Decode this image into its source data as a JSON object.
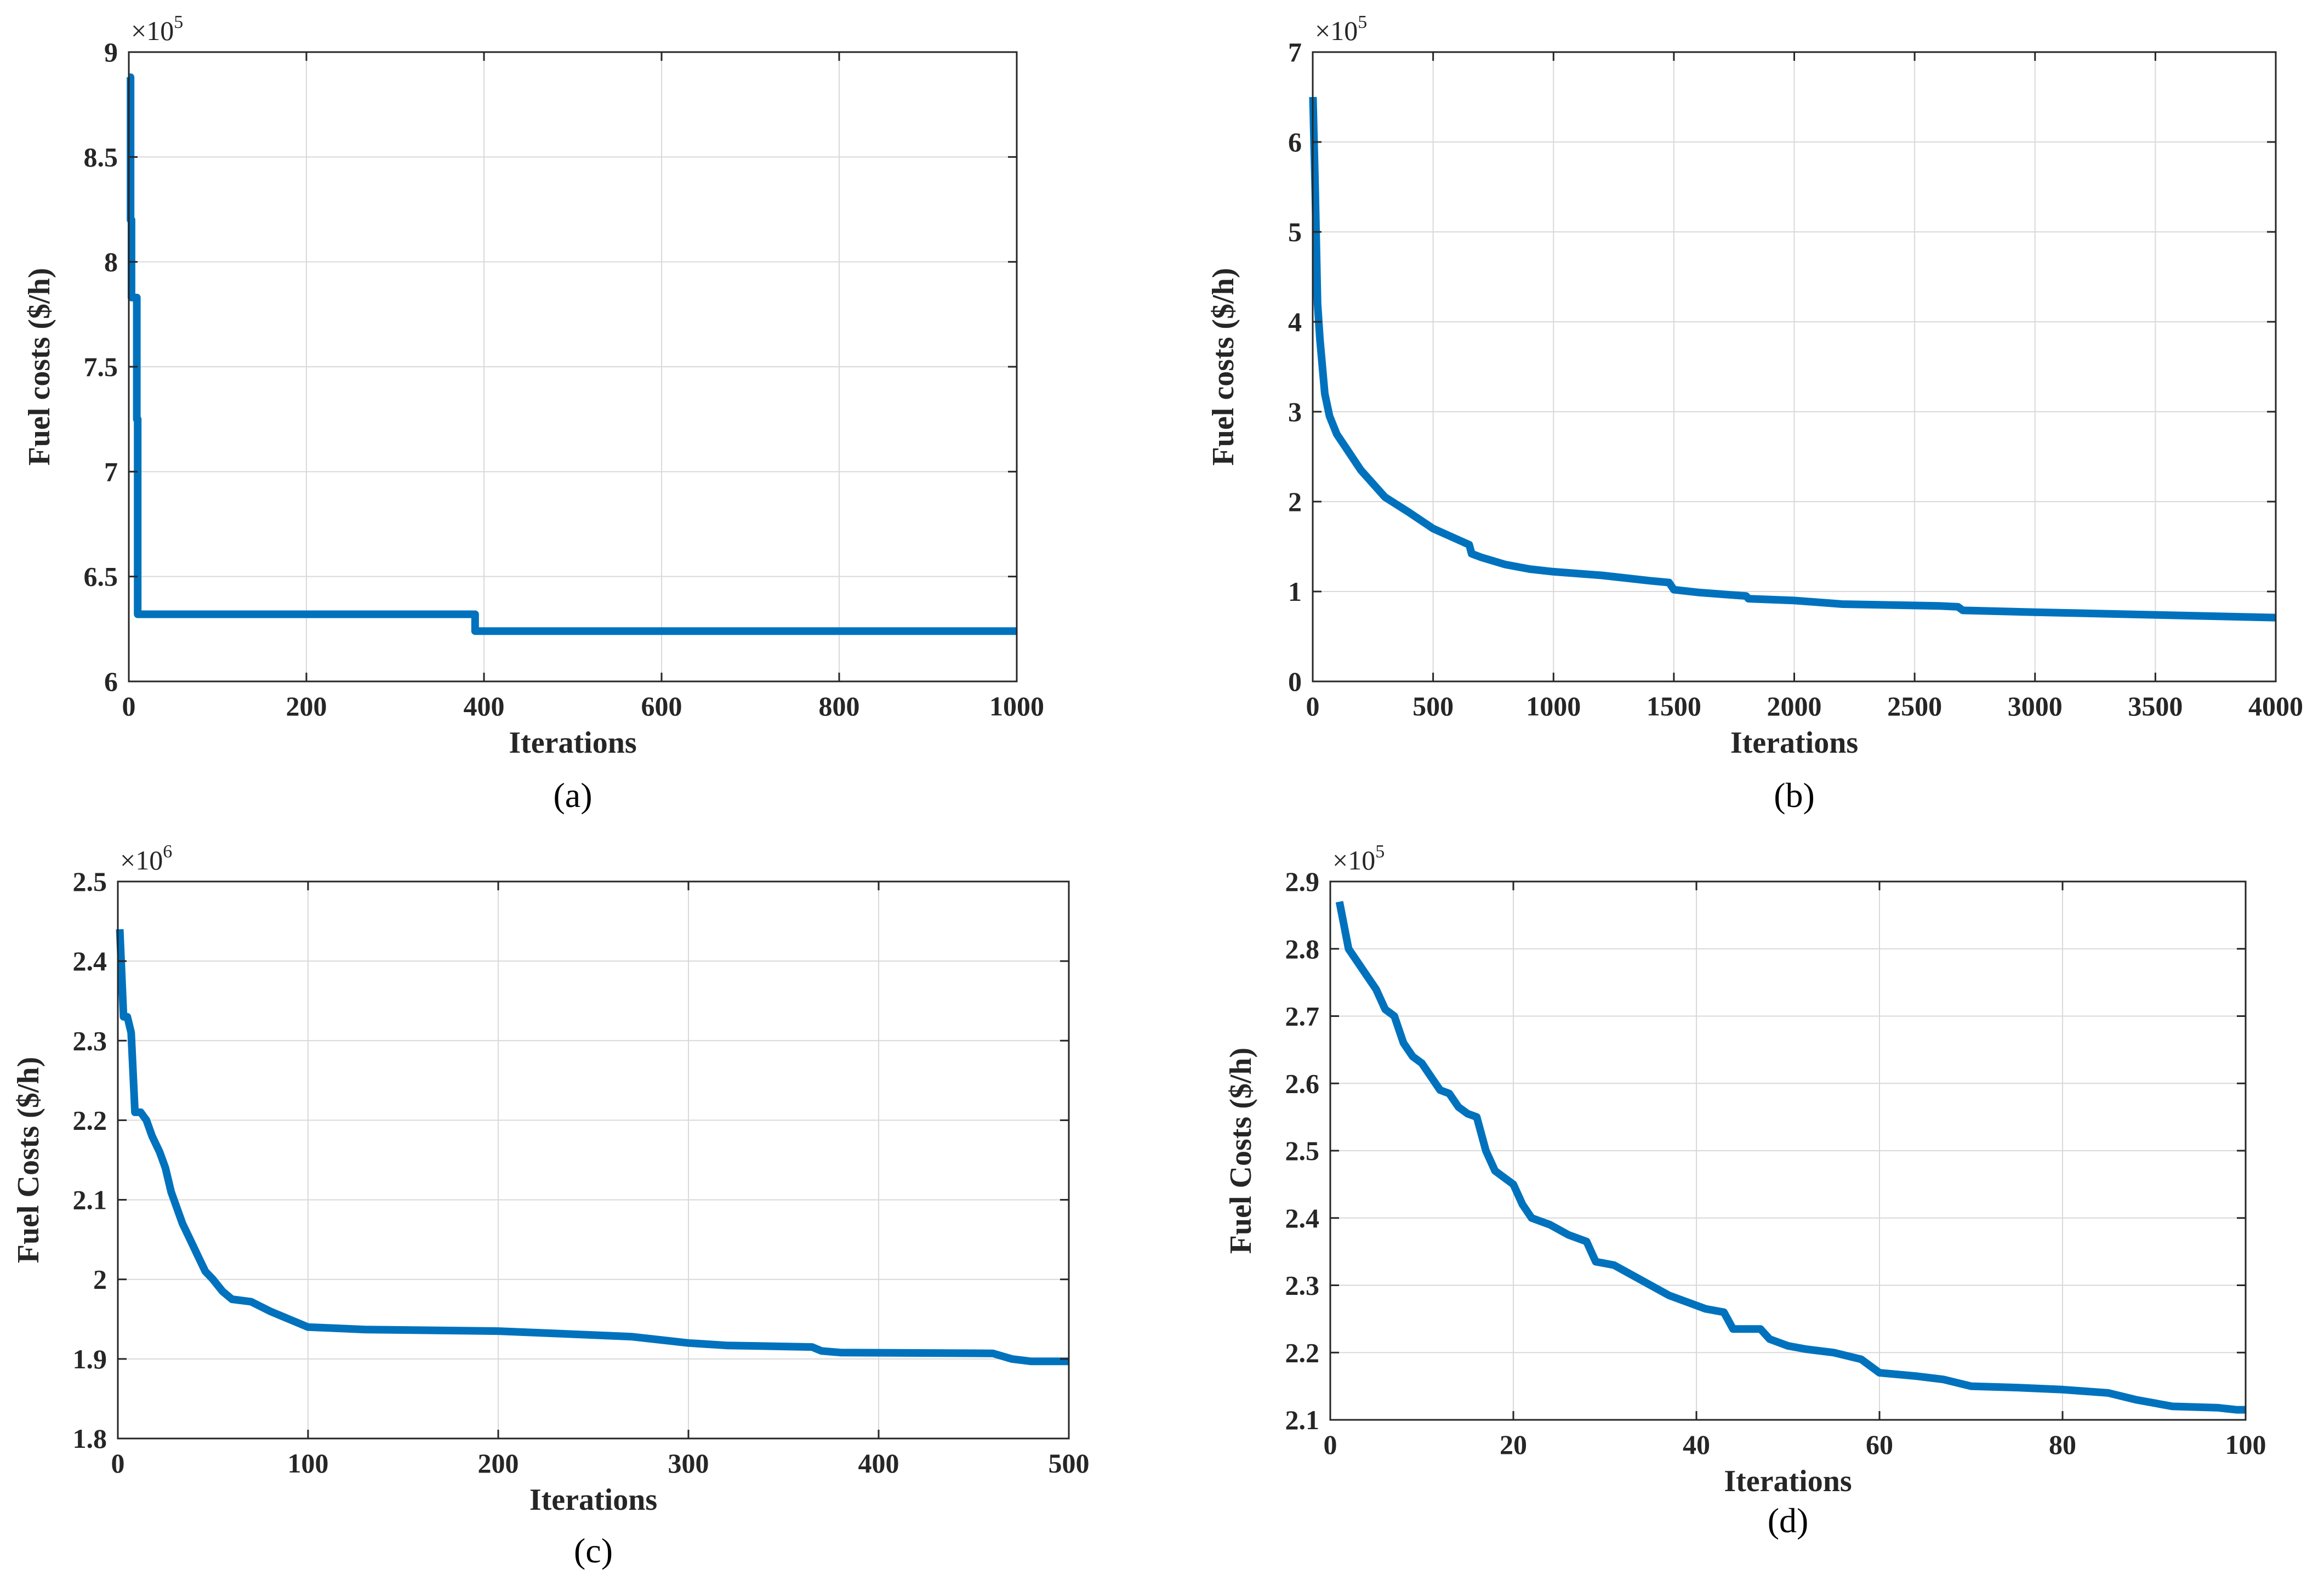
{
  "colors": {
    "series": "#0072BD",
    "axis": "#262626",
    "grid": "#d9d9d9"
  },
  "chart_data": [
    {
      "type": "line",
      "caption": "(a)",
      "xlabel": "Iterations",
      "ylabel": "Fuel costs ($/h)",
      "y_multiplier": {
        "base": "×10",
        "exponent": "5"
      },
      "xlim": [
        0,
        1000
      ],
      "ylim": [
        6,
        9
      ],
      "xticks": [
        0,
        200,
        400,
        600,
        800,
        1000
      ],
      "xtick_labels": [
        "0",
        "200",
        "400",
        "600",
        "800",
        "1000"
      ],
      "yticks": [
        6,
        6.5,
        7,
        7.5,
        8,
        8.5,
        9
      ],
      "ytick_labels": [
        "6",
        "6.5",
        "7",
        "7.5",
        "8",
        "8.5",
        "9"
      ],
      "grid": true,
      "series": [
        {
          "name": "Fuel costs",
          "points": [
            [
              1,
              8.88
            ],
            [
              2,
              8.88
            ],
            [
              2,
              8.2
            ],
            [
              3,
              8.2
            ],
            [
              3,
              7.83
            ],
            [
              9,
              7.83
            ],
            [
              9,
              7.25
            ],
            [
              10,
              7.25
            ],
            [
              10,
              6.32
            ],
            [
              390,
              6.32
            ],
            [
              390,
              6.24
            ],
            [
              1000,
              6.24
            ]
          ]
        }
      ]
    },
    {
      "type": "line",
      "caption": "(b)",
      "xlabel": "Iterations",
      "ylabel": "Fuel costs ($/h)",
      "y_multiplier": {
        "base": "×10",
        "exponent": "5"
      },
      "xlim": [
        0,
        4000
      ],
      "ylim": [
        0,
        7
      ],
      "xticks": [
        0,
        500,
        1000,
        1500,
        2000,
        2500,
        3000,
        3500,
        4000
      ],
      "xtick_labels": [
        "0",
        "500",
        "1000",
        "1500",
        "2000",
        "2500",
        "3000",
        "3500",
        "4000"
      ],
      "yticks": [
        0,
        1,
        2,
        3,
        4,
        5,
        6,
        7
      ],
      "ytick_labels": [
        "0",
        "1",
        "2",
        "3",
        "4",
        "5",
        "6",
        "7"
      ],
      "grid": true,
      "series": [
        {
          "name": "Fuel costs",
          "points": [
            [
              1,
              6.5
            ],
            [
              10,
              5.5
            ],
            [
              20,
              4.2
            ],
            [
              30,
              3.8
            ],
            [
              50,
              3.2
            ],
            [
              70,
              2.95
            ],
            [
              100,
              2.75
            ],
            [
              150,
              2.55
            ],
            [
              200,
              2.35
            ],
            [
              250,
              2.2
            ],
            [
              300,
              2.05
            ],
            [
              400,
              1.88
            ],
            [
              500,
              1.7
            ],
            [
              600,
              1.58
            ],
            [
              650,
              1.52
            ],
            [
              660,
              1.42
            ],
            [
              700,
              1.38
            ],
            [
              800,
              1.3
            ],
            [
              900,
              1.25
            ],
            [
              1000,
              1.22
            ],
            [
              1200,
              1.18
            ],
            [
              1400,
              1.12
            ],
            [
              1480,
              1.1
            ],
            [
              1500,
              1.02
            ],
            [
              1600,
              0.99
            ],
            [
              1800,
              0.95
            ],
            [
              1810,
              0.92
            ],
            [
              2000,
              0.9
            ],
            [
              2200,
              0.86
            ],
            [
              2400,
              0.85
            ],
            [
              2600,
              0.84
            ],
            [
              2680,
              0.83
            ],
            [
              2700,
              0.79
            ],
            [
              3000,
              0.77
            ],
            [
              3500,
              0.74
            ],
            [
              4000,
              0.71
            ]
          ]
        }
      ]
    },
    {
      "type": "line",
      "caption": "(c)",
      "xlabel": "Iterations",
      "ylabel": "Fuel Costs ($/h)",
      "y_multiplier": {
        "base": "×10",
        "exponent": "6"
      },
      "xlim": [
        0,
        500
      ],
      "ylim": [
        1.8,
        2.5
      ],
      "xticks": [
        0,
        100,
        200,
        300,
        400,
        500
      ],
      "xtick_labels": [
        "0",
        "100",
        "200",
        "300",
        "400",
        "500"
      ],
      "yticks": [
        1.8,
        1.9,
        2.0,
        2.1,
        2.2,
        2.3,
        2.4,
        2.5
      ],
      "ytick_labels": [
        "1.8",
        "1.9",
        "2",
        "2.1",
        "2.2",
        "2.3",
        "2.4",
        "2.5"
      ],
      "grid": true,
      "series": [
        {
          "name": "Fuel costs",
          "points": [
            [
              1,
              2.44
            ],
            [
              3,
              2.33
            ],
            [
              5,
              2.33
            ],
            [
              7,
              2.31
            ],
            [
              9,
              2.21
            ],
            [
              12,
              2.21
            ],
            [
              15,
              2.2
            ],
            [
              18,
              2.18
            ],
            [
              22,
              2.16
            ],
            [
              25,
              2.14
            ],
            [
              28,
              2.11
            ],
            [
              31,
              2.09
            ],
            [
              34,
              2.07
            ],
            [
              38,
              2.05
            ],
            [
              42,
              2.03
            ],
            [
              46,
              2.01
            ],
            [
              50,
              2.0
            ],
            [
              55,
              1.985
            ],
            [
              60,
              1.975
            ],
            [
              70,
              1.972
            ],
            [
              80,
              1.96
            ],
            [
              90,
              1.95
            ],
            [
              100,
              1.94
            ],
            [
              130,
              1.937
            ],
            [
              200,
              1.935
            ],
            [
              230,
              1.932
            ],
            [
              270,
              1.928
            ],
            [
              300,
              1.92
            ],
            [
              320,
              1.917
            ],
            [
              365,
              1.915
            ],
            [
              370,
              1.91
            ],
            [
              380,
              1.908
            ],
            [
              460,
              1.907
            ],
            [
              470,
              1.9
            ],
            [
              480,
              1.897
            ],
            [
              500,
              1.897
            ]
          ]
        }
      ]
    },
    {
      "type": "line",
      "caption": "(d)",
      "xlabel": "Iterations",
      "ylabel": "Fuel Costs ($/h)",
      "y_multiplier": {
        "base": "×10",
        "exponent": "5"
      },
      "xlim": [
        0,
        100
      ],
      "ylim": [
        2.1,
        2.9
      ],
      "xticks": [
        0,
        20,
        40,
        60,
        80,
        100
      ],
      "xtick_labels": [
        "0",
        "20",
        "40",
        "60",
        "80",
        "100"
      ],
      "yticks": [
        2.1,
        2.2,
        2.3,
        2.4,
        2.5,
        2.6,
        2.7,
        2.8,
        2.9
      ],
      "ytick_labels": [
        "2.1",
        "2.2",
        "2.3",
        "2.4",
        "2.5",
        "2.6",
        "2.7",
        "2.8",
        "2.9"
      ],
      "grid": true,
      "series": [
        {
          "name": "Fuel costs",
          "points": [
            [
              1,
              2.87
            ],
            [
              2,
              2.8
            ],
            [
              3,
              2.78
            ],
            [
              4,
              2.76
            ],
            [
              5,
              2.74
            ],
            [
              6,
              2.71
            ],
            [
              7,
              2.7
            ],
            [
              8,
              2.66
            ],
            [
              9,
              2.64
            ],
            [
              10,
              2.63
            ],
            [
              11,
              2.61
            ],
            [
              12,
              2.59
            ],
            [
              13,
              2.585
            ],
            [
              14,
              2.565
            ],
            [
              15,
              2.555
            ],
            [
              16,
              2.55
            ],
            [
              17,
              2.5
            ],
            [
              18,
              2.47
            ],
            [
              19,
              2.46
            ],
            [
              20,
              2.45
            ],
            [
              21,
              2.42
            ],
            [
              22,
              2.4
            ],
            [
              24,
              2.39
            ],
            [
              26,
              2.375
            ],
            [
              28,
              2.365
            ],
            [
              29,
              2.335
            ],
            [
              31,
              2.33
            ],
            [
              33,
              2.315
            ],
            [
              35,
              2.3
            ],
            [
              37,
              2.285
            ],
            [
              39,
              2.275
            ],
            [
              41,
              2.265
            ],
            [
              43,
              2.26
            ],
            [
              44,
              2.235
            ],
            [
              47,
              2.235
            ],
            [
              48,
              2.22
            ],
            [
              50,
              2.21
            ],
            [
              52,
              2.205
            ],
            [
              55,
              2.2
            ],
            [
              58,
              2.19
            ],
            [
              60,
              2.17
            ],
            [
              64,
              2.165
            ],
            [
              67,
              2.16
            ],
            [
              70,
              2.15
            ],
            [
              75,
              2.148
            ],
            [
              80,
              2.145
            ],
            [
              85,
              2.14
            ],
            [
              88,
              2.13
            ],
            [
              90,
              2.125
            ],
            [
              92,
              2.12
            ],
            [
              97,
              2.118
            ],
            [
              99,
              2.115
            ],
            [
              100,
              2.115
            ]
          ]
        }
      ]
    }
  ]
}
